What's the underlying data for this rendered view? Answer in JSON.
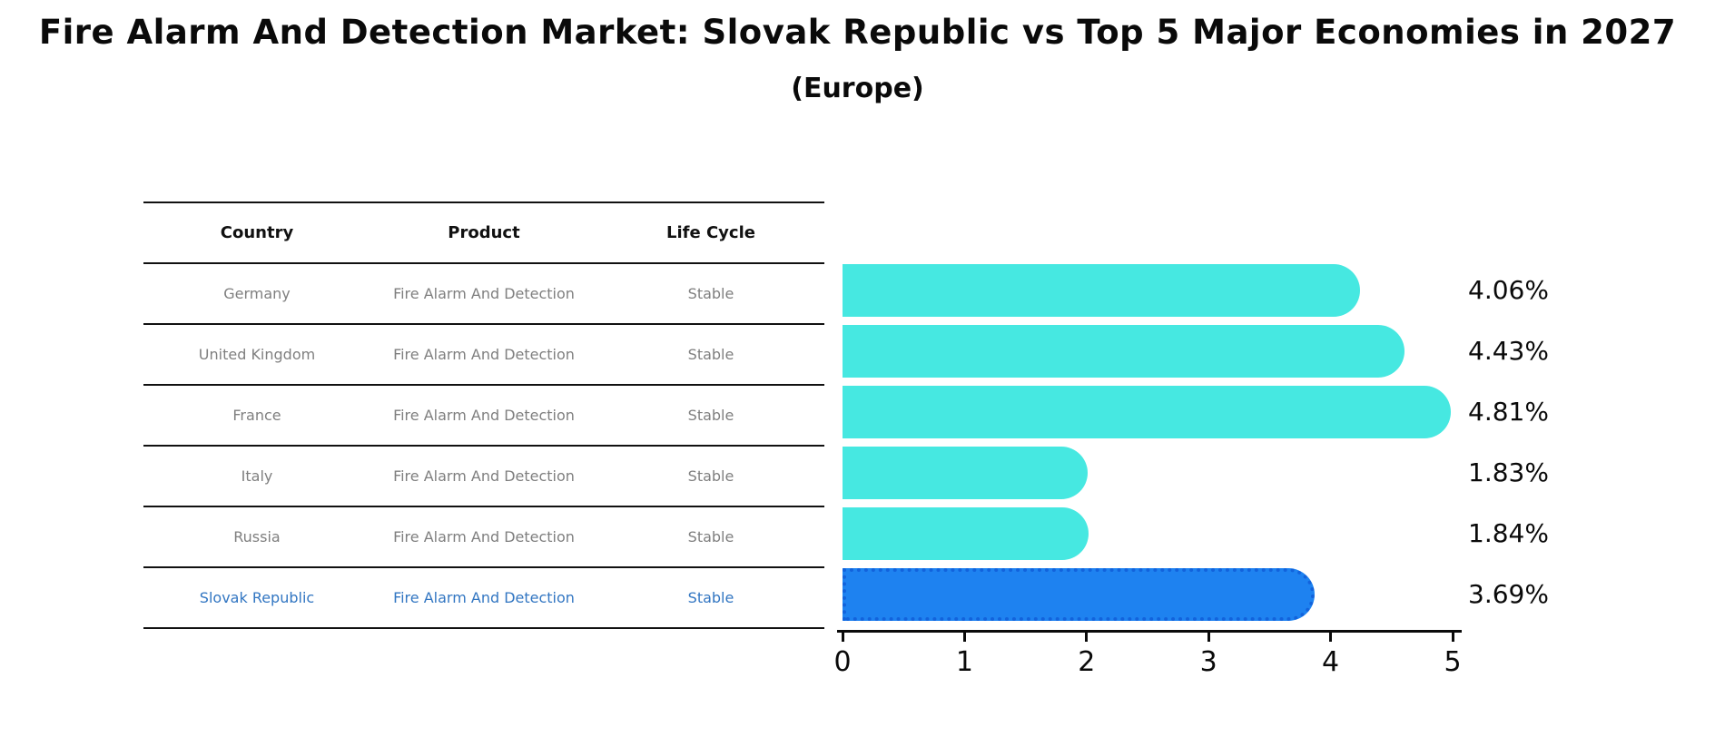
{
  "title": "Fire Alarm And Detection Market: Slovak Republic vs Top 5 Major Economies in 2027",
  "subtitle": "(Europe)",
  "table": {
    "headers": [
      "Country",
      "Product",
      "Life Cycle"
    ],
    "rows": [
      {
        "country": "Germany",
        "product": "Fire Alarm And Detection",
        "life_cycle": "Stable",
        "highlight": false
      },
      {
        "country": "United Kingdom",
        "product": "Fire Alarm And Detection",
        "life_cycle": "Stable",
        "highlight": false
      },
      {
        "country": "France",
        "product": "Fire Alarm And Detection",
        "life_cycle": "Stable",
        "highlight": false
      },
      {
        "country": "Italy",
        "product": "Fire Alarm And Detection",
        "life_cycle": "Stable",
        "highlight": false
      },
      {
        "country": "Russia",
        "product": "Fire Alarm And Detection",
        "life_cycle": "Stable",
        "highlight": false
      },
      {
        "country": "Slovak Republic",
        "product": "Fire Alarm And Detection",
        "life_cycle": "Stable",
        "highlight": true
      }
    ]
  },
  "chart_data": {
    "type": "bar",
    "orientation": "horizontal",
    "title": "Fire Alarm And Detection Market: Slovak Republic vs Top 5 Major Economies in 2027 (Europe)",
    "categories": [
      "Germany",
      "United Kingdom",
      "France",
      "Italy",
      "Russia",
      "Slovak Republic"
    ],
    "values": [
      4.06,
      4.43,
      4.81,
      1.83,
      1.84,
      3.69
    ],
    "value_labels": [
      "4.06%",
      "4.43%",
      "4.81%",
      "1.83%",
      "1.84%",
      "3.69%"
    ],
    "xlim": [
      0,
      5
    ],
    "xticks": [
      0,
      1,
      2,
      3,
      4,
      5
    ],
    "grid": false,
    "legend": false,
    "bar_color": "#46e8e1",
    "highlight_color": "#1e82f0",
    "highlight_border_color": "#1263dc",
    "highlight_index": 5,
    "highlight_text_color": "#3276c2",
    "row_text_color": "#7f7f7f"
  }
}
